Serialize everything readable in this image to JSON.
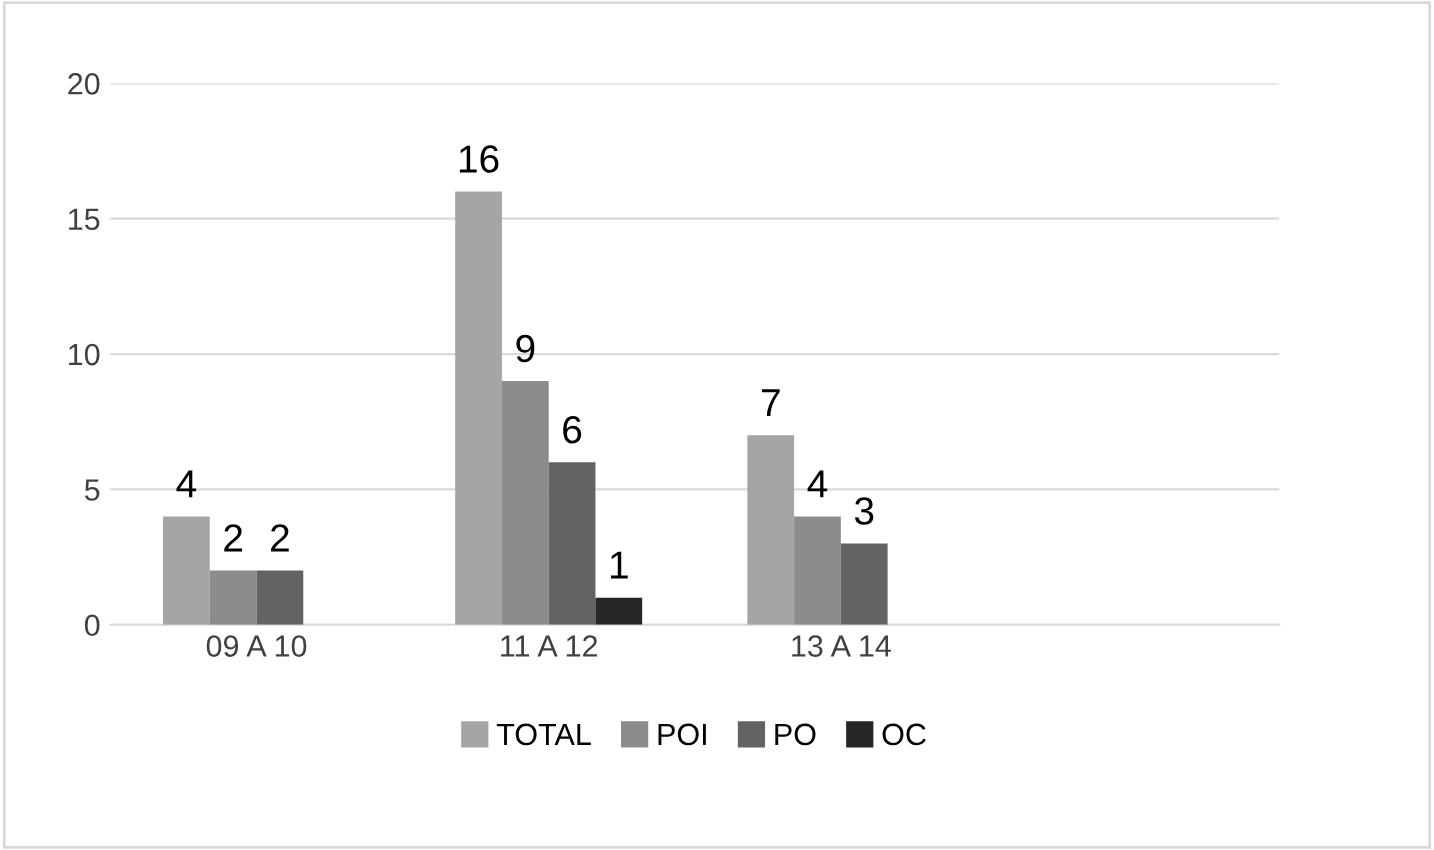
{
  "chart_data": {
    "type": "bar",
    "categories": [
      "09 A 10",
      "11 A 12",
      "13 A 14",
      null
    ],
    "series": [
      {
        "name": "TOTAL",
        "color": "#a5a5a5",
        "values": [
          4,
          16,
          7,
          null
        ]
      },
      {
        "name": "POI",
        "color": "#8c8c8c",
        "values": [
          2,
          9,
          4,
          null
        ]
      },
      {
        "name": "PO",
        "color": "#636363",
        "values": [
          2,
          6,
          3,
          null
        ]
      },
      {
        "name": "OC",
        "color": "#262626",
        "values": [
          null,
          1,
          null,
          null
        ]
      }
    ],
    "ylim": [
      0,
      20
    ],
    "yticks": [
      0,
      5,
      10,
      15,
      20
    ],
    "grid": "y",
    "legend": "bottom",
    "data_labels": true
  }
}
